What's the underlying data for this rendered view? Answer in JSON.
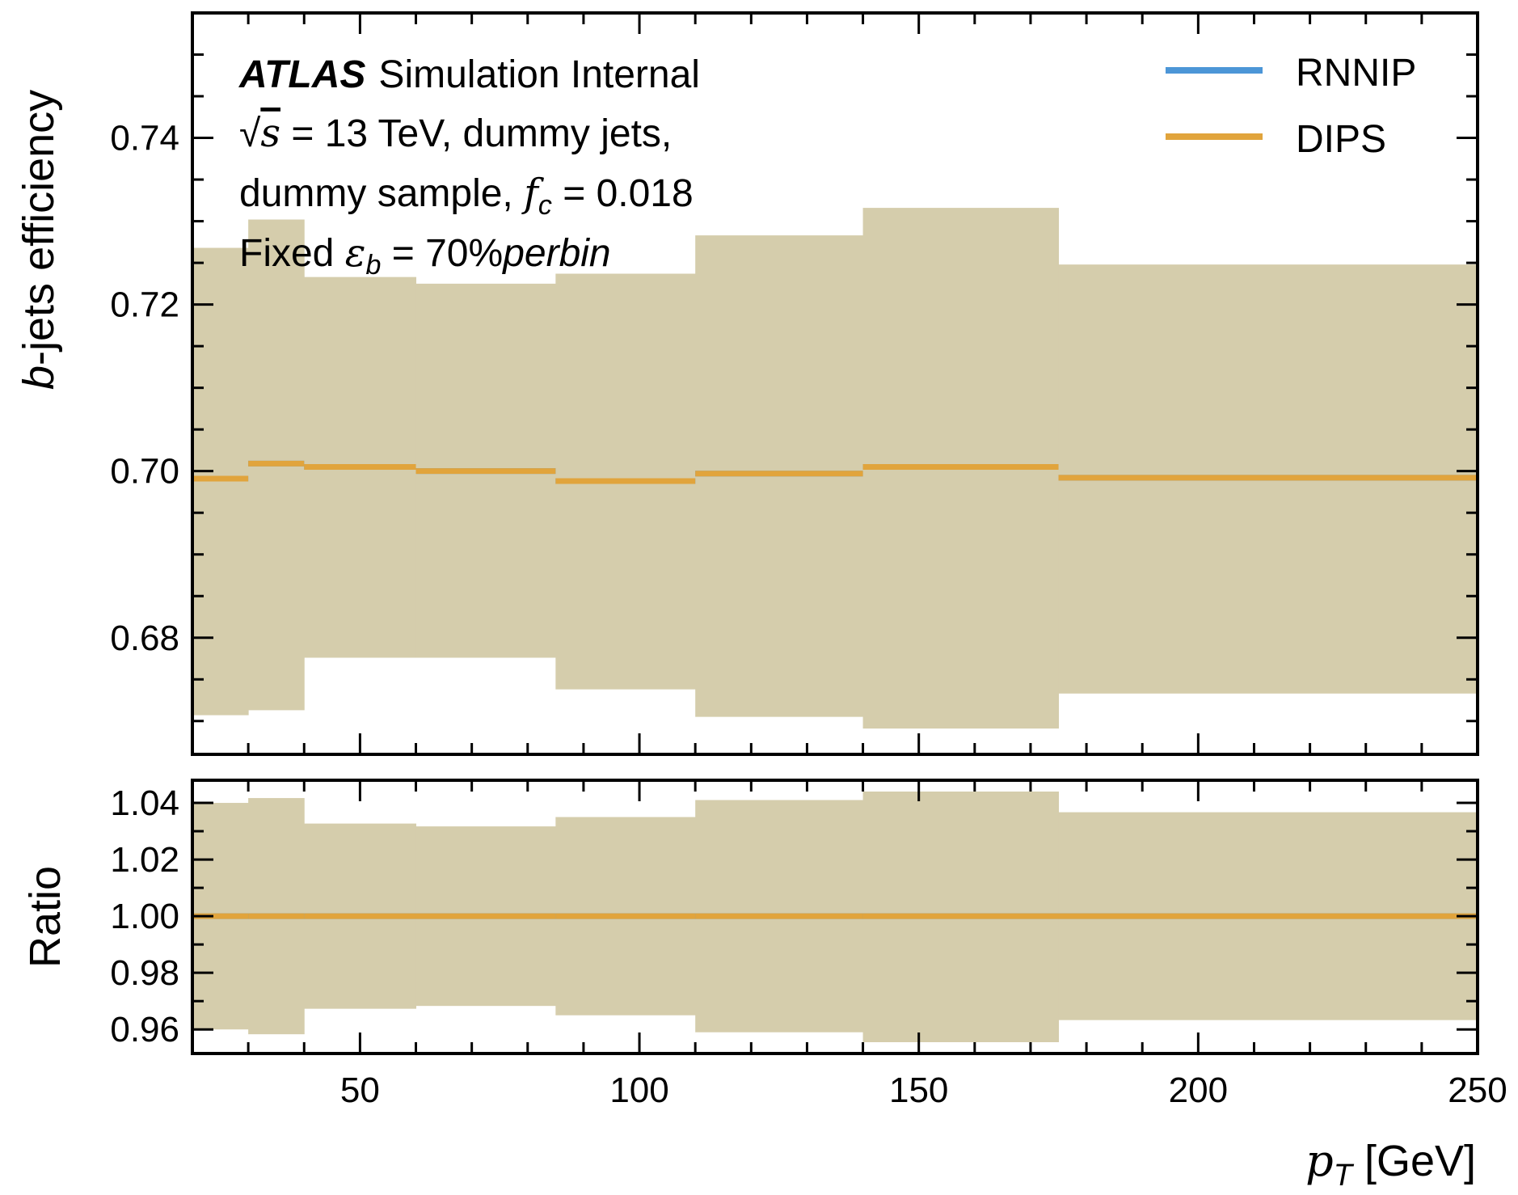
{
  "chart_data": [
    {
      "panel": "main",
      "type": "line",
      "step": true,
      "ylabel": "b-jets efficiency",
      "ylabel_italic_prefix": "b",
      "ylabel_rest": "-jets efficiency",
      "ylim": [
        0.666,
        0.755
      ],
      "yticks": [
        0.68,
        0.7,
        0.72,
        0.74
      ],
      "ytick_labels": [
        "0.68",
        "0.70",
        "0.72",
        "0.74"
      ],
      "xlim": [
        20,
        250
      ],
      "bin_edges": [
        20,
        30,
        40,
        60,
        85,
        110,
        140,
        175,
        250
      ],
      "band": {
        "color": "#d5cdac",
        "lower": [
          0.6707,
          0.6713,
          0.6776,
          0.6776,
          0.6738,
          0.6705,
          0.6691,
          0.6733
        ],
        "upper": [
          0.7268,
          0.7302,
          0.7233,
          0.7225,
          0.7237,
          0.7283,
          0.7316,
          0.7248
        ]
      },
      "series": [
        {
          "name": "RNNIP",
          "color": "#4c96d7",
          "values": [
            0.6991,
            0.7009,
            0.7005,
            0.7,
            0.6988,
            0.6997,
            0.7005,
            0.6992
          ]
        },
        {
          "name": "DIPS",
          "color": "#e1a43c",
          "values": [
            0.6991,
            0.7009,
            0.7005,
            0.7,
            0.6988,
            0.6997,
            0.7005,
            0.6992
          ]
        }
      ],
      "legend_position": "top-right",
      "annotation": {
        "atlas": "ATLAS",
        "atlas_rest": "Simulation Internal",
        "line2": "√s = 13 TeV, dummy jets,",
        "line3": "dummy sample, f_c = 0.018",
        "line4": "Fixed ε_b = 70%perbin",
        "sqrt_label": "√",
        "sqrt_s": "s",
        "line2_rest": " = 13 TeV, dummy jets,",
        "line3_pre": "dummy sample, ",
        "f_sym": "f",
        "f_sub": "c",
        "line3_post": " = 0.018",
        "line4_pre": "Fixed ",
        "eps_sym": "ε",
        "eps_sub": "b",
        "line4_mid": " = 70%",
        "line4_italic": "perbin"
      }
    },
    {
      "panel": "ratio",
      "type": "line",
      "step": true,
      "ylabel": "Ratio",
      "ylim": [
        0.9515,
        1.048
      ],
      "yticks": [
        0.96,
        0.98,
        1.0,
        1.02,
        1.04
      ],
      "ytick_labels": [
        "0.96",
        "0.98",
        "1.00",
        "1.02",
        "1.04"
      ],
      "xlim": [
        20,
        250
      ],
      "xticks": [
        50,
        100,
        150,
        200,
        250
      ],
      "xtick_labels": [
        "50",
        "100",
        "150",
        "200",
        "250"
      ],
      "xlabel": "p_T [GeV]",
      "xlabel_sym": "p",
      "xlabel_sub": "T",
      "xlabel_rest": " [GeV]",
      "bin_edges": [
        20,
        30,
        40,
        60,
        85,
        110,
        140,
        175,
        250
      ],
      "band": {
        "color": "#d5cdac",
        "lower": [
          0.96,
          0.9583,
          0.9673,
          0.9683,
          0.965,
          0.959,
          0.9555,
          0.9633
        ],
        "upper": [
          1.04,
          1.0417,
          1.0327,
          1.0317,
          1.035,
          1.041,
          1.044,
          1.0367
        ]
      },
      "series": [
        {
          "name": "RNNIP",
          "color": "#4c96d7",
          "values": [
            1.0,
            1.0,
            1.0,
            1.0,
            1.0,
            1.0,
            1.0,
            1.0
          ]
        },
        {
          "name": "DIPS",
          "color": "#e1a43c",
          "values": [
            1.0,
            1.0,
            1.0,
            1.0,
            1.0,
            1.0,
            1.0,
            1.0
          ]
        }
      ]
    }
  ]
}
